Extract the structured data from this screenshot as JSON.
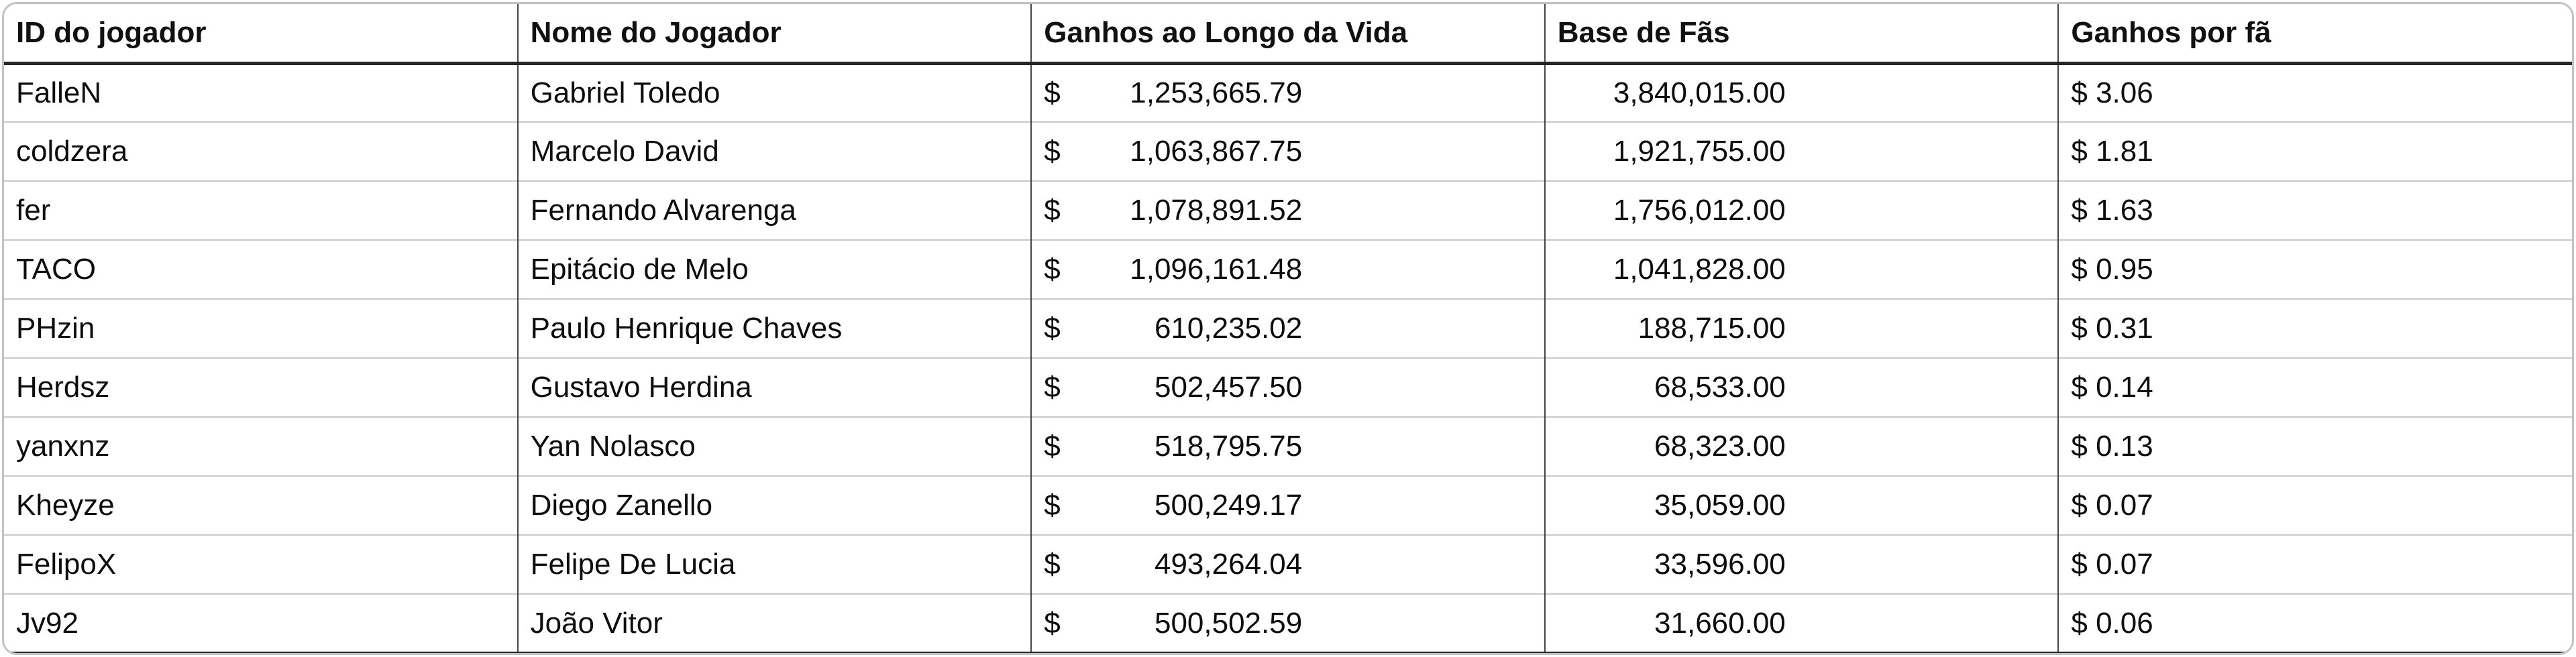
{
  "chart_data": {
    "type": "table",
    "columns": [
      "ID do jogador",
      "Nome do Jogador",
      "Ganhos ao Longo da Vida",
      "Base de Fãs",
      "Ganhos por fã"
    ],
    "currency": "$",
    "rows": [
      [
        "FalleN",
        "Gabriel Toledo",
        1253665.79,
        3840015.0,
        3.06
      ],
      [
        "coldzera",
        "Marcelo David",
        1063867.75,
        1921755.0,
        1.81
      ],
      [
        "fer",
        "Fernando Alvarenga",
        1078891.52,
        1756012.0,
        1.63
      ],
      [
        "TACO",
        "Epitácio de Melo",
        1096161.48,
        1041828.0,
        0.95
      ],
      [
        "PHzin",
        "Paulo Henrique Chaves",
        610235.02,
        188715.0,
        0.31
      ],
      [
        "Herdsz",
        "Gustavo Herdina",
        502457.5,
        68533.0,
        0.14
      ],
      [
        "yanxnz",
        "Yan Nolasco",
        518795.75,
        68323.0,
        0.13
      ],
      [
        "Kheyze",
        "Diego Zanello",
        500249.17,
        35059.0,
        0.07
      ],
      [
        "FelipoX",
        "Felipe De Lucia",
        493264.04,
        33596.0,
        0.07
      ],
      [
        "Jv92",
        "João Vitor",
        500502.59,
        31660.0,
        0.06
      ]
    ]
  },
  "table": {
    "columns": [
      "ID do jogador",
      "Nome do Jogador",
      "Ganhos ao Longo da Vida",
      "Base de Fãs",
      "Ganhos por fã"
    ],
    "rows": [
      {
        "id": "FalleN",
        "name": "Gabriel Toledo",
        "currency": "$",
        "earnings": "1,253,665.79",
        "fans": "3,840,015.00",
        "per_fan": "$ 3.06"
      },
      {
        "id": "coldzera",
        "name": "Marcelo David",
        "currency": "$",
        "earnings": "1,063,867.75",
        "fans": "1,921,755.00",
        "per_fan": "$ 1.81"
      },
      {
        "id": "fer",
        "name": "Fernando Alvarenga",
        "currency": "$",
        "earnings": "1,078,891.52",
        "fans": "1,756,012.00",
        "per_fan": "$ 1.63"
      },
      {
        "id": "TACO",
        "name": "Epitácio de Melo",
        "currency": "$",
        "earnings": "1,096,161.48",
        "fans": "1,041,828.00",
        "per_fan": "$ 0.95"
      },
      {
        "id": "PHzin",
        "name": "Paulo Henrique Chaves",
        "currency": "$",
        "earnings": "610,235.02",
        "fans": "188,715.00",
        "per_fan": "$ 0.31"
      },
      {
        "id": "Herdsz",
        "name": "Gustavo Herdina",
        "currency": "$",
        "earnings": "502,457.50",
        "fans": "68,533.00",
        "per_fan": "$ 0.14"
      },
      {
        "id": "yanxnz",
        "name": "Yan Nolasco",
        "currency": "$",
        "earnings": "518,795.75",
        "fans": "68,323.00",
        "per_fan": "$ 0.13"
      },
      {
        "id": "Kheyze",
        "name": "Diego Zanello",
        "currency": "$",
        "earnings": "500,249.17",
        "fans": "35,059.00",
        "per_fan": "$ 0.07"
      },
      {
        "id": "FelipoX",
        "name": "Felipe De Lucia",
        "currency": "$",
        "earnings": "493,264.04",
        "fans": "33,596.00",
        "per_fan": "$ 0.07"
      },
      {
        "id": "Jv92",
        "name": "João Vitor",
        "currency": "$",
        "earnings": "500,502.59",
        "fans": "31,660.00",
        "per_fan": "$ 0.06"
      }
    ]
  }
}
